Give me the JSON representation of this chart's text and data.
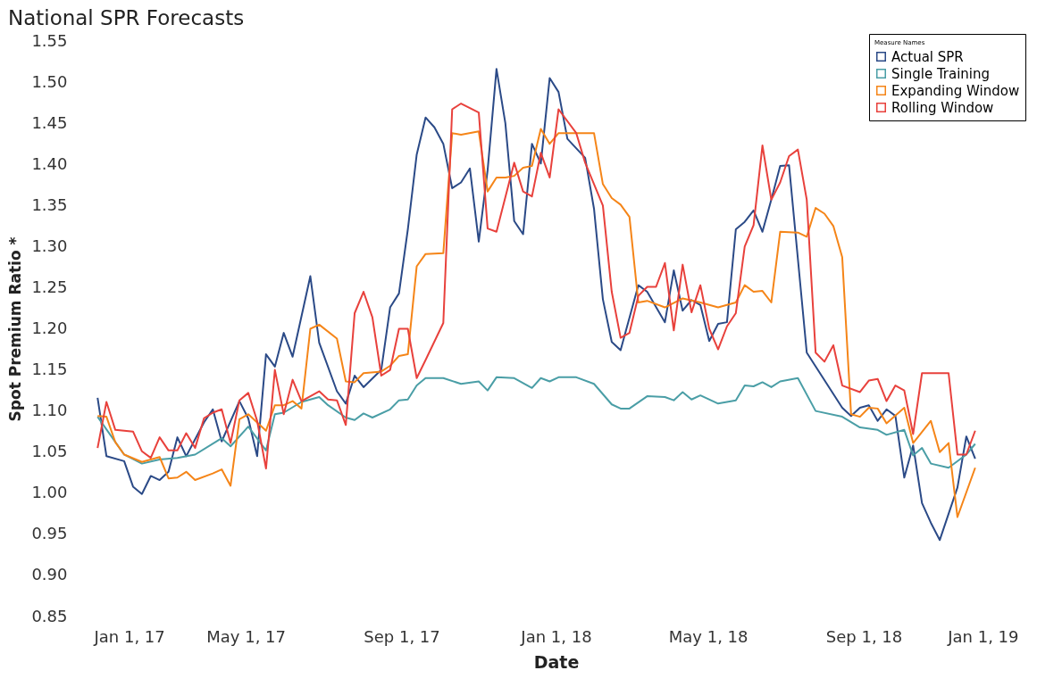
{
  "chart_data": {
    "type": "line",
    "title": "National SPR Forecasts",
    "xlabel": "Date",
    "ylabel": "Spot Premium Ratio *",
    "legend_title": "Measure Names",
    "legend": "top right",
    "marker": "none",
    "line_style": "solid",
    "xlim": [
      "2017-01-01",
      "2019-01-01"
    ],
    "xticks": [
      {
        "value": "2017-01-01",
        "label": "Jan 1, 17"
      },
      {
        "value": "2017-05-01",
        "label": "May 1, 17"
      },
      {
        "value": "2017-09-01",
        "label": "Sep 1, 17"
      },
      {
        "value": "2018-01-01",
        "label": "Jan 1, 18"
      },
      {
        "value": "2018-05-01",
        "label": "May 1, 18"
      },
      {
        "value": "2018-09-01",
        "label": "Sep 1, 18"
      },
      {
        "value": "2019-01-01",
        "label": "Jan 1, 19"
      }
    ],
    "ylim": [
      0.85,
      1.55
    ],
    "yticks": [
      {
        "value": 0.85,
        "label": "0.85"
      },
      {
        "value": 0.9,
        "label": "0.90"
      },
      {
        "value": 0.95,
        "label": "0.95"
      },
      {
        "value": 1.0,
        "label": "1.00"
      },
      {
        "value": 1.05,
        "label": "1.05"
      },
      {
        "value": 1.1,
        "label": "1.10"
      },
      {
        "value": 1.15,
        "label": "1.15"
      },
      {
        "value": 1.2,
        "label": "1.20"
      },
      {
        "value": 1.25,
        "label": "1.25"
      },
      {
        "value": 1.3,
        "label": "1.30"
      },
      {
        "value": 1.35,
        "label": "1.35"
      },
      {
        "value": 1.4,
        "label": "1.40"
      },
      {
        "value": 1.45,
        "label": "1.45"
      },
      {
        "value": 1.5,
        "label": "1.50"
      },
      {
        "value": 1.55,
        "label": "1.55"
      }
    ],
    "series": [
      {
        "name": "Actual SPR",
        "color": "#2b4a87",
        "x": [
          "2017-01-04",
          "2017-01-11",
          "2017-01-25",
          "2017-02-01",
          "2017-02-08",
          "2017-02-15",
          "2017-02-22",
          "2017-03-01",
          "2017-03-08",
          "2017-03-15",
          "2017-03-29",
          "2017-04-05",
          "2017-04-12",
          "2017-04-26",
          "2017-05-03",
          "2017-05-10",
          "2017-05-17",
          "2017-05-24",
          "2017-05-31",
          "2017-06-07",
          "2017-06-21",
          "2017-06-28",
          "2017-07-12",
          "2017-07-19",
          "2017-07-26",
          "2017-08-02",
          "2017-08-16",
          "2017-08-23",
          "2017-08-30",
          "2017-09-06",
          "2017-09-13",
          "2017-09-20",
          "2017-09-27",
          "2017-10-04",
          "2017-10-11",
          "2017-10-18",
          "2017-10-25",
          "2017-11-01",
          "2017-11-08",
          "2017-11-15",
          "2017-11-22",
          "2017-11-29",
          "2017-12-06",
          "2017-12-13",
          "2017-12-20",
          "2017-12-27",
          "2018-01-03",
          "2018-01-10",
          "2018-01-24",
          "2018-01-31",
          "2018-02-07",
          "2018-02-14",
          "2018-02-21",
          "2018-03-07",
          "2018-03-14",
          "2018-03-28",
          "2018-04-04",
          "2018-04-11",
          "2018-04-18",
          "2018-04-25",
          "2018-05-02",
          "2018-05-09",
          "2018-05-16",
          "2018-05-23",
          "2018-05-30",
          "2018-06-06",
          "2018-06-13",
          "2018-06-20",
          "2018-06-27",
          "2018-07-04",
          "2018-07-18",
          "2018-08-15",
          "2018-08-22",
          "2018-08-29",
          "2018-09-05",
          "2018-09-12",
          "2018-09-19",
          "2018-09-26",
          "2018-10-03",
          "2018-10-10",
          "2018-10-17",
          "2018-10-24",
          "2018-10-31",
          "2018-11-14",
          "2018-11-21",
          "2018-11-28"
        ],
        "values": [
          1.116,
          1.045,
          1.039,
          1.008,
          0.999,
          1.021,
          1.016,
          1.026,
          1.068,
          1.045,
          1.086,
          1.102,
          1.063,
          1.112,
          1.091,
          1.045,
          1.169,
          1.154,
          1.195,
          1.166,
          1.264,
          1.183,
          1.124,
          1.109,
          1.143,
          1.129,
          1.15,
          1.226,
          1.243,
          1.321,
          1.412,
          1.457,
          1.445,
          1.425,
          1.371,
          1.378,
          1.395,
          1.306,
          1.393,
          1.516,
          1.45,
          1.331,
          1.315,
          1.425,
          1.401,
          1.505,
          1.488,
          1.431,
          1.408,
          1.346,
          1.236,
          1.184,
          1.174,
          1.253,
          1.245,
          1.208,
          1.271,
          1.222,
          1.235,
          1.229,
          1.185,
          1.206,
          1.208,
          1.321,
          1.33,
          1.344,
          1.318,
          1.357,
          1.398,
          1.399,
          1.171,
          1.104,
          1.094,
          1.104,
          1.107,
          1.088,
          1.102,
          1.094,
          1.019,
          1.058,
          0.988,
          0.964,
          0.943,
          1.007,
          1.069,
          1.042
        ]
      },
      {
        "name": "Single Training",
        "color": "#4a9ea6",
        "x": [
          "2017-01-04",
          "2017-01-25",
          "2017-02-08",
          "2017-02-22",
          "2017-03-08",
          "2017-03-22",
          "2017-04-12",
          "2017-04-19",
          "2017-05-03",
          "2017-05-17",
          "2017-05-24",
          "2017-05-31",
          "2017-06-14",
          "2017-06-28",
          "2017-07-05",
          "2017-07-19",
          "2017-07-26",
          "2017-08-02",
          "2017-08-09",
          "2017-08-23",
          "2017-08-30",
          "2017-09-06",
          "2017-09-13",
          "2017-09-20",
          "2017-10-04",
          "2017-10-18",
          "2017-11-01",
          "2017-11-08",
          "2017-11-15",
          "2017-11-29",
          "2017-12-13",
          "2017-12-20",
          "2017-12-27",
          "2018-01-03",
          "2018-01-17",
          "2018-01-31",
          "2018-02-14",
          "2018-02-21",
          "2018-02-28",
          "2018-03-14",
          "2018-03-28",
          "2018-04-04",
          "2018-04-11",
          "2018-04-18",
          "2018-04-25",
          "2018-05-09",
          "2018-05-23",
          "2018-05-30",
          "2018-06-06",
          "2018-06-13",
          "2018-06-20",
          "2018-06-27",
          "2018-07-11",
          "2018-07-25",
          "2018-08-15",
          "2018-08-29",
          "2018-09-12",
          "2018-09-19",
          "2018-10-03",
          "2018-10-10",
          "2018-10-17",
          "2018-10-24",
          "2018-11-07",
          "2018-11-21",
          "2018-11-28"
        ],
        "values": [
          1.093,
          1.047,
          1.036,
          1.041,
          1.043,
          1.047,
          1.067,
          1.057,
          1.081,
          1.052,
          1.096,
          1.098,
          1.111,
          1.117,
          1.107,
          1.092,
          1.089,
          1.097,
          1.092,
          1.102,
          1.113,
          1.114,
          1.131,
          1.14,
          1.14,
          1.133,
          1.136,
          1.125,
          1.141,
          1.14,
          1.128,
          1.14,
          1.136,
          1.141,
          1.141,
          1.133,
          1.108,
          1.103,
          1.103,
          1.118,
          1.117,
          1.113,
          1.123,
          1.114,
          1.119,
          1.109,
          1.113,
          1.131,
          1.13,
          1.135,
          1.129,
          1.136,
          1.14,
          1.1,
          1.093,
          1.08,
          1.077,
          1.071,
          1.077,
          1.046,
          1.055,
          1.036,
          1.031,
          1.047,
          1.06
        ]
      },
      {
        "name": "Expanding Window",
        "color": "#f58518",
        "x": [
          "2017-01-04",
          "2017-01-11",
          "2017-01-18",
          "2017-01-25",
          "2017-02-08",
          "2017-02-22",
          "2017-03-01",
          "2017-03-08",
          "2017-03-15",
          "2017-03-22",
          "2017-04-05",
          "2017-04-12",
          "2017-04-19",
          "2017-04-26",
          "2017-05-03",
          "2017-05-17",
          "2017-05-24",
          "2017-05-31",
          "2017-06-07",
          "2017-06-14",
          "2017-06-21",
          "2017-06-28",
          "2017-07-12",
          "2017-07-19",
          "2017-07-26",
          "2017-08-02",
          "2017-08-16",
          "2017-08-23",
          "2017-08-30",
          "2017-09-06",
          "2017-09-13",
          "2017-09-20",
          "2017-10-04",
          "2017-10-11",
          "2017-10-18",
          "2017-11-01",
          "2017-11-08",
          "2017-11-15",
          "2017-11-22",
          "2017-11-29",
          "2017-12-06",
          "2017-12-13",
          "2017-12-20",
          "2017-12-27",
          "2018-01-03",
          "2018-01-31",
          "2018-02-07",
          "2018-02-14",
          "2018-02-21",
          "2018-02-28",
          "2018-03-07",
          "2018-03-14",
          "2018-03-28",
          "2018-04-11",
          "2018-04-25",
          "2018-05-09",
          "2018-05-23",
          "2018-05-30",
          "2018-06-06",
          "2018-06-13",
          "2018-06-20",
          "2018-06-27",
          "2018-07-11",
          "2018-07-18",
          "2018-07-25",
          "2018-08-01",
          "2018-08-08",
          "2018-08-15",
          "2018-08-22",
          "2018-08-29",
          "2018-09-05",
          "2018-09-12",
          "2018-09-19",
          "2018-10-03",
          "2018-10-10",
          "2018-10-24",
          "2018-10-31",
          "2018-11-07",
          "2018-11-14",
          "2018-11-28"
        ],
        "values": [
          1.094,
          1.093,
          1.062,
          1.047,
          1.038,
          1.044,
          1.018,
          1.019,
          1.026,
          1.016,
          1.024,
          1.029,
          1.009,
          1.09,
          1.096,
          1.076,
          1.107,
          1.107,
          1.112,
          1.103,
          1.2,
          1.205,
          1.188,
          1.136,
          1.135,
          1.146,
          1.148,
          1.155,
          1.167,
          1.169,
          1.276,
          1.291,
          1.292,
          1.438,
          1.436,
          1.44,
          1.367,
          1.384,
          1.384,
          1.386,
          1.396,
          1.398,
          1.443,
          1.425,
          1.438,
          1.438,
          1.376,
          1.359,
          1.351,
          1.336,
          1.232,
          1.234,
          1.226,
          1.237,
          1.232,
          1.226,
          1.232,
          1.253,
          1.245,
          1.246,
          1.232,
          1.318,
          1.317,
          1.312,
          1.347,
          1.34,
          1.325,
          1.287,
          1.096,
          1.093,
          1.104,
          1.103,
          1.085,
          1.104,
          1.061,
          1.088,
          1.05,
          1.061,
          0.971,
          1.031
        ]
      },
      {
        "name": "Rolling Window",
        "color": "#e8413c",
        "x": [
          "2017-01-04",
          "2017-01-11",
          "2017-01-18",
          "2017-02-01",
          "2017-02-08",
          "2017-02-15",
          "2017-02-22",
          "2017-03-01",
          "2017-03-08",
          "2017-03-15",
          "2017-03-22",
          "2017-03-29",
          "2017-04-05",
          "2017-04-12",
          "2017-04-19",
          "2017-04-26",
          "2017-05-03",
          "2017-05-10",
          "2017-05-17",
          "2017-05-24",
          "2017-05-31",
          "2017-06-07",
          "2017-06-14",
          "2017-06-28",
          "2017-07-05",
          "2017-07-12",
          "2017-07-19",
          "2017-07-26",
          "2017-08-02",
          "2017-08-09",
          "2017-08-16",
          "2017-08-23",
          "2017-08-30",
          "2017-09-06",
          "2017-09-13",
          "2017-09-20",
          "2017-10-04",
          "2017-10-11",
          "2017-10-18",
          "2017-11-01",
          "2017-11-08",
          "2017-11-15",
          "2017-11-29",
          "2017-12-06",
          "2017-12-13",
          "2017-12-20",
          "2017-12-27",
          "2018-01-03",
          "2018-01-17",
          "2018-01-24",
          "2018-02-07",
          "2018-02-14",
          "2018-02-21",
          "2018-02-28",
          "2018-03-07",
          "2018-03-14",
          "2018-03-21",
          "2018-03-28",
          "2018-04-04",
          "2018-04-11",
          "2018-04-18",
          "2018-04-25",
          "2018-05-02",
          "2018-05-09",
          "2018-05-16",
          "2018-05-23",
          "2018-05-30",
          "2018-06-06",
          "2018-06-13",
          "2018-06-20",
          "2018-06-27",
          "2018-07-04",
          "2018-07-11",
          "2018-07-18",
          "2018-07-25",
          "2018-08-01",
          "2018-08-08",
          "2018-08-15",
          "2018-08-29",
          "2018-09-05",
          "2018-09-12",
          "2018-09-19",
          "2018-09-26",
          "2018-10-03",
          "2018-10-10",
          "2018-10-17",
          "2018-11-07",
          "2018-11-14",
          "2018-11-21",
          "2018-11-28"
        ],
        "values": [
          1.055,
          1.111,
          1.077,
          1.075,
          1.051,
          1.043,
          1.068,
          1.052,
          1.052,
          1.073,
          1.055,
          1.091,
          1.098,
          1.102,
          1.061,
          1.113,
          1.122,
          1.088,
          1.03,
          1.15,
          1.096,
          1.138,
          1.112,
          1.124,
          1.114,
          1.113,
          1.083,
          1.219,
          1.245,
          1.214,
          1.143,
          1.15,
          1.2,
          1.2,
          1.14,
          1.162,
          1.207,
          1.467,
          1.474,
          1.463,
          1.322,
          1.318,
          1.402,
          1.367,
          1.361,
          1.414,
          1.384,
          1.467,
          1.438,
          1.402,
          1.35,
          1.245,
          1.189,
          1.195,
          1.24,
          1.251,
          1.251,
          1.28,
          1.198,
          1.278,
          1.22,
          1.253,
          1.2,
          1.175,
          1.203,
          1.219,
          1.3,
          1.326,
          1.423,
          1.357,
          1.378,
          1.41,
          1.418,
          1.357,
          1.171,
          1.16,
          1.18,
          1.131,
          1.123,
          1.137,
          1.139,
          1.112,
          1.131,
          1.125,
          1.072,
          1.146,
          1.146,
          1.047,
          1.047,
          1.076
        ]
      }
    ]
  }
}
